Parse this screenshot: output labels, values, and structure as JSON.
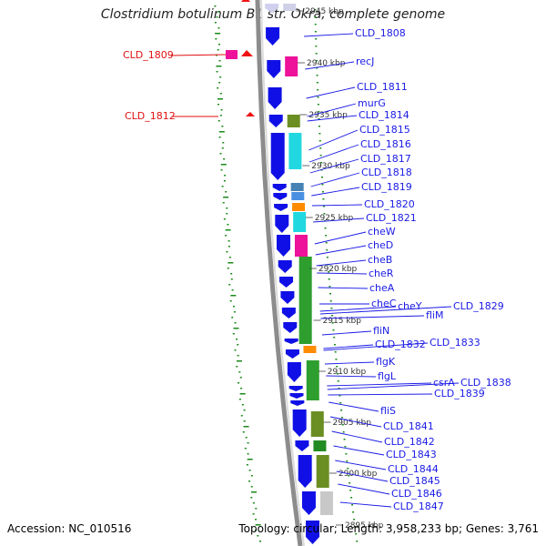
{
  "title": "Clostridium botulinum B1 str. Okra, complete genome",
  "footer": {
    "accession": "Accession: NC_010516",
    "topology": "Topology: circular; Length: 3,958,233 bp; Genes: 3,761"
  },
  "colors": {
    "forward_gene": "#1010e6",
    "red_gene": "#ee1111",
    "label_blue": "#1a1ae6",
    "label_red": "#e01010",
    "backbone": "#8c8c8c",
    "gc_tick": "#1a8a1a"
  },
  "kbp_marks": [
    "2945 kbp",
    "2940 kbp",
    "2935 kbp",
    "2930 kbp",
    "2925 kbp",
    "2920 kbp",
    "2915 kbp",
    "2910 kbp",
    "2905 kbp",
    "2900 kbp",
    "2895 kbp"
  ],
  "right_labels": [
    "CLD_1808",
    "recJ",
    "CLD_1811",
    "murG",
    "CLD_1814",
    "CLD_1815",
    "CLD_1816",
    "CLD_1817",
    "CLD_1818",
    "CLD_1819",
    "CLD_1820",
    "CLD_1821",
    "cheW",
    "cheD",
    "cheB",
    "cheR",
    "cheA",
    "cheC",
    "cheY",
    "CLD_1829",
    "fliM",
    "fliN",
    "CLD_1832",
    "CLD_1833",
    "flgK",
    "flgL",
    "csrA",
    "CLD_1838",
    "CLD_1839",
    "fliS",
    "CLD_1841",
    "CLD_1842",
    "CLD_1843",
    "CLD_1844",
    "CLD_1845",
    "CLD_1846",
    "CLD_1847"
  ],
  "left_labels": [
    "CLD_1809",
    "CLD_1812"
  ]
}
